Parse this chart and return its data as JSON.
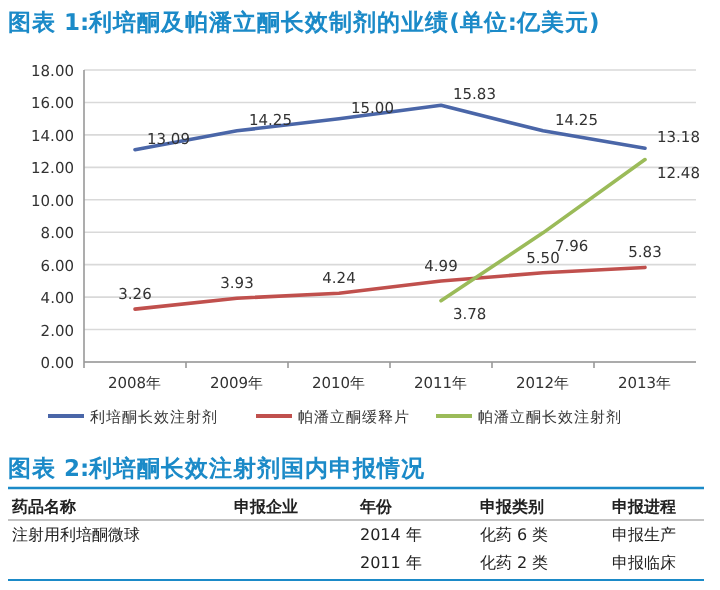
{
  "chart_data": {
    "type": "line",
    "title": "图表 1:利培酮及帕潘立酮长效制剂的业绩(单位:亿美元)",
    "categories": [
      "2008年",
      "2009年",
      "2010年",
      "2011年",
      "2012年",
      "2013年"
    ],
    "series": [
      {
        "name": "利培酮长效注射剂",
        "color": "#4a66a8",
        "values": [
          13.09,
          14.25,
          15.0,
          15.83,
          14.25,
          13.18
        ],
        "value_labels": [
          "13.09",
          "14.25",
          "15.00",
          "15.83",
          "14.25",
          "13.18"
        ]
      },
      {
        "name": "帕潘立酮缓释片",
        "color": "#c0504d",
        "values": [
          3.26,
          3.93,
          4.24,
          4.99,
          5.5,
          5.83
        ],
        "value_labels": [
          "3.26",
          "3.93",
          "4.24",
          "4.99",
          "5.50",
          "5.83"
        ]
      },
      {
        "name": "帕潘立酮长效注射剂",
        "color": "#9bbb59",
        "values": [
          null,
          null,
          null,
          3.78,
          7.96,
          12.48
        ],
        "value_labels": [
          null,
          null,
          null,
          "3.78",
          "7.96",
          "12.48"
        ]
      }
    ],
    "ylim": [
      0,
      18
    ],
    "yticks": [
      {
        "value": 0,
        "label": "0.00"
      },
      {
        "value": 2,
        "label": "2.00"
      },
      {
        "value": 4,
        "label": "4.00"
      },
      {
        "value": 6,
        "label": "6.00"
      },
      {
        "value": 8,
        "label": "8.00"
      },
      {
        "value": 10,
        "label": "10.00"
      },
      {
        "value": 12,
        "label": "12.00"
      },
      {
        "value": 14,
        "label": "14.00"
      },
      {
        "value": 16,
        "label": "16.00"
      },
      {
        "value": 18,
        "label": "18.00"
      }
    ],
    "grid": "y",
    "legend": "bottom",
    "marker": "none",
    "line_style": "solid",
    "annotations": [
      "图表 2:利培酮长效注射剂国内申报情况",
      "药品名称\t申报企业\t年份\t申报类别\t申报进程",
      "注射用利培酮微球\t\t2014 年\t化药 6 类\t申报生产",
      "\t\t2011 年\t化药 2 类\t申报临床"
    ]
  }
}
